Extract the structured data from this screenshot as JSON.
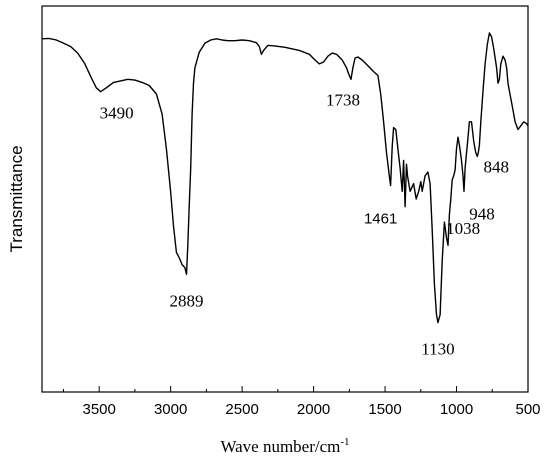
{
  "chart_data": {
    "type": "line",
    "xlabel": "Wave number/cm",
    "xlabel_sup": "-1",
    "ylabel": "Transmittance",
    "xlim": [
      3900,
      500
    ],
    "ylim": [
      0,
      100
    ],
    "x_reversed": true,
    "grid": false,
    "legend": "none",
    "x_ticks": [
      3500,
      3000,
      2500,
      2000,
      1500,
      1000,
      500
    ],
    "x_tick_labels": [
      "3500",
      "3000",
      "2500",
      "2000",
      "1500",
      "1000",
      "500"
    ],
    "series": [
      {
        "color": "#000000",
        "points": [
          [
            3900,
            91.5
          ],
          [
            3850,
            91.6
          ],
          [
            3800,
            91.2
          ],
          [
            3750,
            90.4
          ],
          [
            3700,
            89.5
          ],
          [
            3650,
            87.8
          ],
          [
            3600,
            85.0
          ],
          [
            3560,
            81.8
          ],
          [
            3520,
            78.8
          ],
          [
            3490,
            77.8
          ],
          [
            3450,
            78.8
          ],
          [
            3400,
            80.2
          ],
          [
            3350,
            80.6
          ],
          [
            3300,
            81.0
          ],
          [
            3250,
            80.8
          ],
          [
            3200,
            80.2
          ],
          [
            3150,
            79.4
          ],
          [
            3100,
            77.2
          ],
          [
            3060,
            72.0
          ],
          [
            3030,
            63.0
          ],
          [
            3000,
            52.0
          ],
          [
            2980,
            43.0
          ],
          [
            2960,
            36.2
          ],
          [
            2940,
            34.8
          ],
          [
            2920,
            33.0
          ],
          [
            2900,
            32.2
          ],
          [
            2889,
            30.5
          ],
          [
            2880,
            38.0
          ],
          [
            2870,
            48.0
          ],
          [
            2860,
            58.0
          ],
          [
            2850,
            72.0
          ],
          [
            2840,
            80.0
          ],
          [
            2830,
            84.0
          ],
          [
            2800,
            88.0
          ],
          [
            2760,
            90.4
          ],
          [
            2720,
            91.2
          ],
          [
            2680,
            91.5
          ],
          [
            2640,
            91.2
          ],
          [
            2600,
            91.0
          ],
          [
            2550,
            91.0
          ],
          [
            2500,
            91.2
          ],
          [
            2450,
            91.0
          ],
          [
            2400,
            90.5
          ],
          [
            2380,
            89.5
          ],
          [
            2365,
            87.5
          ],
          [
            2350,
            88.5
          ],
          [
            2320,
            89.8
          ],
          [
            2280,
            89.7
          ],
          [
            2200,
            89.3
          ],
          [
            2100,
            88.5
          ],
          [
            2030,
            87.5
          ],
          [
            1990,
            86.0
          ],
          [
            1960,
            85.0
          ],
          [
            1930,
            85.5
          ],
          [
            1900,
            87.0
          ],
          [
            1870,
            87.8
          ],
          [
            1840,
            87.5
          ],
          [
            1800,
            86.0
          ],
          [
            1770,
            84.0
          ],
          [
            1750,
            82.0
          ],
          [
            1738,
            81.0
          ],
          [
            1725,
            84.0
          ],
          [
            1710,
            86.5
          ],
          [
            1690,
            86.8
          ],
          [
            1660,
            86.0
          ],
          [
            1620,
            84.5
          ],
          [
            1580,
            83.0
          ],
          [
            1550,
            82.0
          ],
          [
            1530,
            77.0
          ],
          [
            1510,
            70.0
          ],
          [
            1490,
            62.0
          ],
          [
            1470,
            56.0
          ],
          [
            1461,
            53.5
          ],
          [
            1450,
            63.5
          ],
          [
            1440,
            68.5
          ],
          [
            1425,
            68.0
          ],
          [
            1410,
            63.0
          ],
          [
            1395,
            58.0
          ],
          [
            1380,
            52.0
          ],
          [
            1370,
            60.0
          ],
          [
            1360,
            48.0
          ],
          [
            1350,
            59.0
          ],
          [
            1343,
            56.0
          ],
          [
            1325,
            52.0
          ],
          [
            1300,
            54.0
          ],
          [
            1282,
            50.0
          ],
          [
            1265,
            52.0
          ],
          [
            1250,
            54.5
          ],
          [
            1240,
            52.0
          ],
          [
            1220,
            56.0
          ],
          [
            1200,
            57.0
          ],
          [
            1185,
            54.0
          ],
          [
            1170,
            42.0
          ],
          [
            1155,
            28.0
          ],
          [
            1140,
            20.0
          ],
          [
            1130,
            18.0
          ],
          [
            1115,
            20.0
          ],
          [
            1100,
            34.0
          ],
          [
            1085,
            44.0
          ],
          [
            1070,
            40.0
          ],
          [
            1060,
            38.0
          ],
          [
            1050,
            46.0
          ],
          [
            1040,
            50.0
          ],
          [
            1030,
            55.0
          ],
          [
            1020,
            56.0
          ],
          [
            1010,
            57.5
          ],
          [
            1000,
            63.0
          ],
          [
            990,
            66.0
          ],
          [
            980,
            64.0
          ],
          [
            965,
            60.0
          ],
          [
            955,
            56.0
          ],
          [
            948,
            52.0
          ],
          [
            940,
            58.0
          ],
          [
            925,
            64.0
          ],
          [
            910,
            70.0
          ],
          [
            895,
            70.0
          ],
          [
            880,
            65.0
          ],
          [
            865,
            62.0
          ],
          [
            855,
            61.0
          ],
          [
            848,
            62.0
          ],
          [
            840,
            64.0
          ],
          [
            830,
            70.0
          ],
          [
            815,
            78.0
          ],
          [
            800,
            85.0
          ],
          [
            785,
            90.0
          ],
          [
            770,
            93.0
          ],
          [
            755,
            92.0
          ],
          [
            740,
            89.0
          ],
          [
            720,
            84.0
          ],
          [
            710,
            80.0
          ],
          [
            700,
            81.0
          ],
          [
            690,
            85.0
          ],
          [
            675,
            87.0
          ],
          [
            660,
            86.0
          ],
          [
            650,
            84.0
          ],
          [
            640,
            80.0
          ],
          [
            625,
            77.0
          ],
          [
            610,
            74.0
          ],
          [
            590,
            70.0
          ],
          [
            570,
            68.0
          ],
          [
            550,
            69.0
          ],
          [
            530,
            70.0
          ],
          [
            510,
            69.5
          ],
          [
            500,
            69.0
          ]
        ]
      }
    ],
    "annotations": [
      {
        "text": "3490",
        "x": 3490,
        "y": 77.8,
        "style": "serif"
      },
      {
        "text": "2889",
        "x": 2889,
        "y": 30.5,
        "style": "serif"
      },
      {
        "text": "1738",
        "x": 1738,
        "y": 81.0,
        "style": "serif"
      },
      {
        "text": "1461",
        "x": 1461,
        "y": 53.5,
        "style": "sans"
      },
      {
        "text": "1130",
        "x": 1130,
        "y": 18.0,
        "style": "serif"
      },
      {
        "text": "1038",
        "x": 1038,
        "y": 50.0,
        "style": "serif"
      },
      {
        "text": "948",
        "x": 948,
        "y": 52.0,
        "style": "serif"
      },
      {
        "text": "848",
        "x": 848,
        "y": 62.0,
        "style": "serif"
      }
    ]
  }
}
